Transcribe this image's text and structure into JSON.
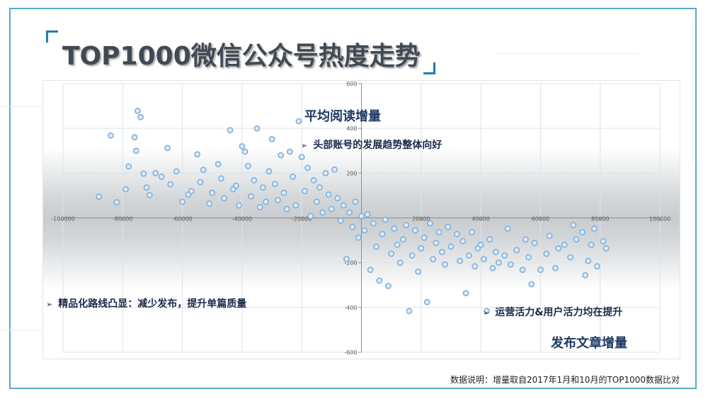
{
  "title": "TOP1000微信公众号热度走势",
  "footnote": "数据说明：增量取自2017年1月和10月的TOP1000数据比对",
  "annotations": {
    "y_label": "平均阅读增量",
    "x_label": "发布文章增量",
    "note_top": "头部账号的发展趋势整体向好",
    "note_left": "精品化路线凸显：减少发布，提升单篇质量",
    "note_right": "运营活力&用户活力均在提升",
    "bullet": "➢"
  },
  "colors": {
    "marker_stroke": "#7fb0dc",
    "marker_fill": "#dcebf7",
    "frame": "#5aa9c7",
    "title": "#404a55"
  },
  "chart_data": {
    "type": "scatter",
    "title": "",
    "xlabel": "发布文章增量",
    "ylabel": "平均阅读增量",
    "xlim": [
      -100000,
      100000
    ],
    "ylim": [
      -600,
      600
    ],
    "xticks": [
      -100000,
      -80000,
      -60000,
      -40000,
      -20000,
      0,
      20000,
      40000,
      60000,
      80000,
      100000
    ],
    "xtick_labels": [
      "-100000",
      "-80000",
      "-60000",
      "-40000",
      "-20000",
      "0",
      "20000",
      "40000",
      "60000",
      "80000",
      "100000"
    ],
    "yticks": [
      600,
      400,
      200,
      -200,
      -400,
      -600
    ],
    "ytick_labels": [
      "600",
      "400",
      "200",
      "-200",
      "-400",
      "-600"
    ],
    "grid": true,
    "legend": "none",
    "points": [
      [
        -88000,
        95
      ],
      [
        -84000,
        368
      ],
      [
        -82000,
        70
      ],
      [
        -79000,
        128
      ],
      [
        -78000,
        230
      ],
      [
        -76000,
        360
      ],
      [
        -75500,
        300
      ],
      [
        -75000,
        478
      ],
      [
        -74000,
        450
      ],
      [
        -73000,
        198
      ],
      [
        -72000,
        136
      ],
      [
        -71000,
        102
      ],
      [
        -69000,
        200
      ],
      [
        -67000,
        184
      ],
      [
        -65000,
        312
      ],
      [
        -64000,
        150
      ],
      [
        -62000,
        208
      ],
      [
        -60000,
        72
      ],
      [
        -58000,
        104
      ],
      [
        -57000,
        120
      ],
      [
        -55000,
        284
      ],
      [
        -54000,
        160
      ],
      [
        -53000,
        215
      ],
      [
        -51000,
        64
      ],
      [
        -50000,
        112
      ],
      [
        -48000,
        240
      ],
      [
        -47000,
        176
      ],
      [
        -46000,
        88
      ],
      [
        -44000,
        392
      ],
      [
        -43000,
        128
      ],
      [
        -42000,
        144
      ],
      [
        -41000,
        56
      ],
      [
        -40000,
        320
      ],
      [
        -39000,
        296
      ],
      [
        -38000,
        232
      ],
      [
        -37000,
        96
      ],
      [
        -36000,
        168
      ],
      [
        -35000,
        400
      ],
      [
        -34000,
        48
      ],
      [
        -33000,
        136
      ],
      [
        -32000,
        72
      ],
      [
        -31000,
        208
      ],
      [
        -30000,
        352
      ],
      [
        -29000,
        152
      ],
      [
        -28000,
        80
      ],
      [
        -27000,
        280
      ],
      [
        -26000,
        112
      ],
      [
        -25000,
        40
      ],
      [
        -24000,
        296
      ],
      [
        -23000,
        184
      ],
      [
        -22000,
        56
      ],
      [
        -21000,
        432
      ],
      [
        -20000,
        272
      ],
      [
        -19000,
        120
      ],
      [
        -18000,
        224
      ],
      [
        -17000,
        8
      ],
      [
        -16000,
        168
      ],
      [
        -15000,
        72
      ],
      [
        -14000,
        136
      ],
      [
        -13000,
        24
      ],
      [
        -12000,
        200
      ],
      [
        -11000,
        104
      ],
      [
        -10000,
        40
      ],
      [
        -9000,
        216
      ],
      [
        -8000,
        88
      ],
      [
        -7000,
        -12
      ],
      [
        -6000,
        56
      ],
      [
        -5000,
        -184
      ],
      [
        -4000,
        24
      ],
      [
        -3000,
        -40
      ],
      [
        -2000,
        72
      ],
      [
        -1000,
        -88
      ],
      [
        0,
        8
      ],
      [
        1000,
        -56
      ],
      [
        2000,
        16
      ],
      [
        3000,
        -232
      ],
      [
        4000,
        -24
      ],
      [
        5000,
        -128
      ],
      [
        6000,
        -280
      ],
      [
        7000,
        -72
      ],
      [
        8000,
        -8
      ],
      [
        9000,
        -304
      ],
      [
        10000,
        -160
      ],
      [
        11000,
        -48
      ],
      [
        12000,
        -120
      ],
      [
        13000,
        -200
      ],
      [
        14000,
        -96
      ],
      [
        15000,
        -32
      ],
      [
        16000,
        -416
      ],
      [
        17000,
        -168
      ],
      [
        18000,
        -56
      ],
      [
        19000,
        -240
      ],
      [
        20000,
        -136
      ],
      [
        21000,
        -88
      ],
      [
        22000,
        -376
      ],
      [
        23000,
        -24
      ],
      [
        24000,
        -184
      ],
      [
        25000,
        -112
      ],
      [
        26000,
        -64
      ],
      [
        27000,
        -152
      ],
      [
        28000,
        -208
      ],
      [
        29000,
        -40
      ],
      [
        30000,
        -128
      ],
      [
        32000,
        -72
      ],
      [
        33000,
        -192
      ],
      [
        34000,
        -104
      ],
      [
        35000,
        -336
      ],
      [
        36000,
        -168
      ],
      [
        37000,
        -64
      ],
      [
        38000,
        -216
      ],
      [
        39000,
        -136
      ],
      [
        40000,
        -120
      ],
      [
        41000,
        -184
      ],
      [
        42000,
        -416
      ],
      [
        43000,
        -96
      ],
      [
        44000,
        -224
      ],
      [
        45000,
        -152
      ],
      [
        46000,
        -200
      ],
      [
        48000,
        -168
      ],
      [
        49000,
        -48
      ],
      [
        50000,
        -208
      ],
      [
        52000,
        -144
      ],
      [
        54000,
        -232
      ],
      [
        55000,
        -96
      ],
      [
        56000,
        -176
      ],
      [
        57000,
        -296
      ],
      [
        58000,
        -112
      ],
      [
        60000,
        -232
      ],
      [
        62000,
        -160
      ],
      [
        63000,
        -80
      ],
      [
        65000,
        -224
      ],
      [
        66000,
        -136
      ],
      [
        68000,
        -120
      ],
      [
        70000,
        -176
      ],
      [
        71000,
        -32
      ],
      [
        72000,
        -96
      ],
      [
        74000,
        -64
      ],
      [
        75000,
        -256
      ],
      [
        76000,
        -192
      ],
      [
        77000,
        -120
      ],
      [
        78000,
        -48
      ],
      [
        79000,
        -216
      ],
      [
        81000,
        -104
      ],
      [
        82000,
        -136
      ]
    ]
  }
}
